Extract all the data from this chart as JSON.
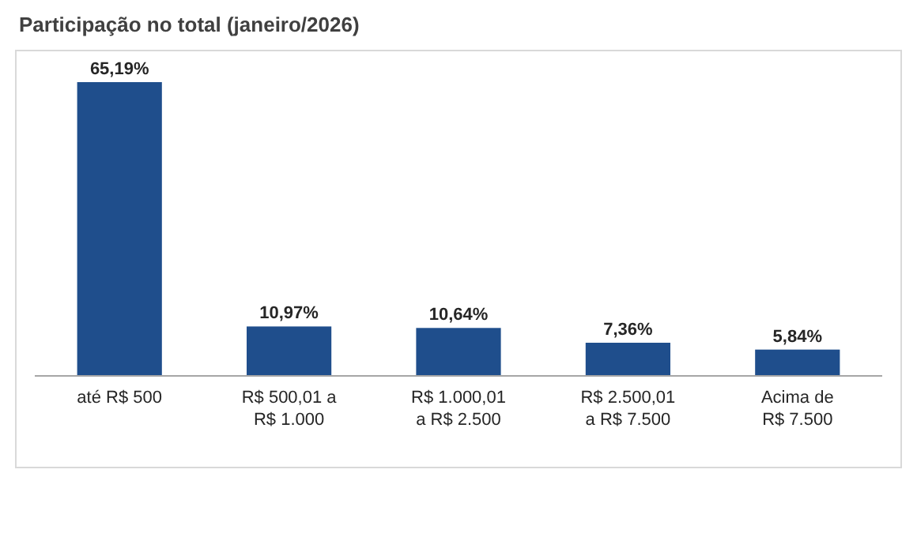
{
  "chart_data": {
    "type": "bar",
    "title": "Participação no total (janeiro/2026)",
    "categories": [
      "até R$ 500",
      "R$ 500,01 a\nR$ 1.000",
      "R$ 1.000,01\na R$ 2.500",
      "R$ 2.500,01\na R$ 7.500",
      "Acima de\nR$ 7.500"
    ],
    "values": [
      65.19,
      10.97,
      10.64,
      7.36,
      5.84
    ],
    "value_labels": [
      "65,19%",
      "10,97%",
      "10,64%",
      "7,36%",
      "5,84%"
    ],
    "color": "#1f4e8c"
  }
}
